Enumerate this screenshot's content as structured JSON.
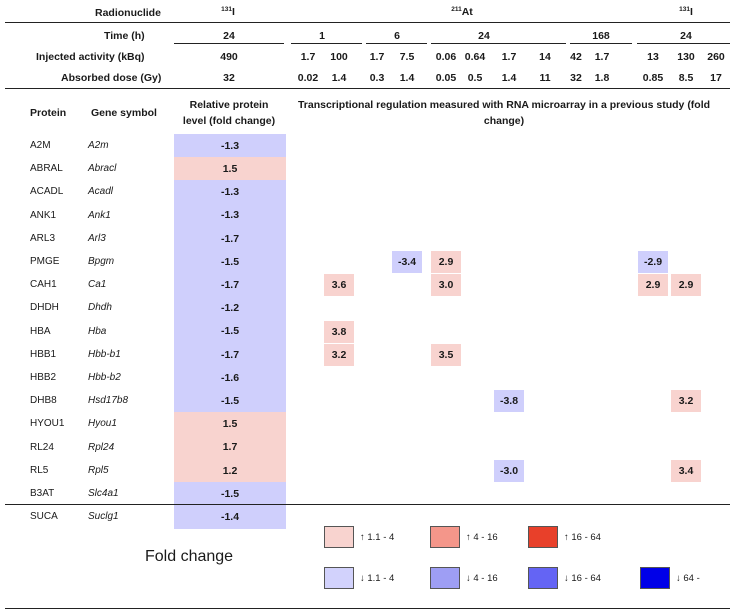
{
  "header": {
    "radionuclide_label": "Radionuclide",
    "time_label": "Time (h)",
    "activity_label": "Injected activity (kBq)",
    "dose_label": "Absorbed dose (Gy)",
    "i131_sup": "131",
    "i131_sym": "I",
    "at211_sup": "211",
    "at211_sym": "At",
    "times": [
      "24",
      "1",
      "6",
      "24",
      "168",
      "24"
    ],
    "activities": [
      "490",
      "1.7",
      "100",
      "1.7",
      "7.5",
      "0.06",
      "0.64",
      "1.7",
      "14",
      "42",
      "1.7",
      "13",
      "130",
      "260"
    ],
    "doses": [
      "32",
      "0.02",
      "1.4",
      "0.3",
      "1.4",
      "0.05",
      "0.5",
      "1.4",
      "11",
      "32",
      "1.8",
      "0.85",
      "8.5",
      "17"
    ]
  },
  "columns": {
    "protein": "Protein",
    "gene": "Gene symbol",
    "relative_line1": "Relative protein",
    "relative_line2": "level (fold change)",
    "transcript_line1": "Transcriptional regulation measured with RNA microarray in a previous study (fold",
    "transcript_line2": "change)"
  },
  "rows": [
    {
      "protein": "A2M",
      "gene": "A2m",
      "fold": "-1.3"
    },
    {
      "protein": "ABRAL",
      "gene": "Abracl",
      "fold": "1.5"
    },
    {
      "protein": "ACADL",
      "gene": "Acadl",
      "fold": "-1.3"
    },
    {
      "protein": "ANK1",
      "gene": "Ank1",
      "fold": "-1.3"
    },
    {
      "protein": "ARL3",
      "gene": "Arl3",
      "fold": "-1.7"
    },
    {
      "protein": "PMGE",
      "gene": "Bpgm",
      "fold": "-1.5"
    },
    {
      "protein": "CAH1",
      "gene": "Ca1",
      "fold": "-1.7"
    },
    {
      "protein": "DHDH",
      "gene": "Dhdh",
      "fold": "-1.2"
    },
    {
      "protein": "HBA",
      "gene": "Hba",
      "fold": "-1.5"
    },
    {
      "protein": "HBB1",
      "gene": "Hbb-b1",
      "fold": "-1.7"
    },
    {
      "protein": "HBB2",
      "gene": "Hbb-b2",
      "fold": "-1.6"
    },
    {
      "protein": "DHB8",
      "gene": "Hsd17b8",
      "fold": "-1.5"
    },
    {
      "protein": "HYOU1",
      "gene": "Hyou1",
      "fold": "1.5"
    },
    {
      "protein": "RL24",
      "gene": "Rpl24",
      "fold": "1.7"
    },
    {
      "protein": "RL5",
      "gene": "Rpl5",
      "fold": "1.2"
    },
    {
      "protein": "B3AT",
      "gene": "Slc4a1",
      "fold": "-1.5"
    },
    {
      "protein": "SUCA",
      "gene": "Suclg1",
      "fold": "-1.4"
    }
  ],
  "transcript_values": [
    {
      "row": 5,
      "col": 4,
      "value": "-3.4",
      "level": "down-1-4"
    },
    {
      "row": 5,
      "col": 5,
      "value": "2.9",
      "level": "up-1-4"
    },
    {
      "row": 5,
      "col": 11,
      "value": "-2.9",
      "level": "down-1-4"
    },
    {
      "row": 6,
      "col": 2,
      "value": "3.6",
      "level": "up-1-4"
    },
    {
      "row": 6,
      "col": 5,
      "value": "3.0",
      "level": "up-1-4"
    },
    {
      "row": 6,
      "col": 11,
      "value": "2.9",
      "level": "up-1-4"
    },
    {
      "row": 6,
      "col": 12,
      "value": "2.9",
      "level": "up-1-4"
    },
    {
      "row": 8,
      "col": 2,
      "value": "3.8",
      "level": "up-1-4"
    },
    {
      "row": 9,
      "col": 2,
      "value": "3.2",
      "level": "up-1-4"
    },
    {
      "row": 9,
      "col": 5,
      "value": "3.5",
      "level": "up-1-4"
    },
    {
      "row": 11,
      "col": 7,
      "value": "-3.8",
      "level": "down-1-4"
    },
    {
      "row": 11,
      "col": 12,
      "value": "3.2",
      "level": "up-1-4"
    },
    {
      "row": 14,
      "col": 7,
      "value": "-3.0",
      "level": "down-1-4"
    },
    {
      "row": 14,
      "col": 12,
      "value": "3.4",
      "level": "up-1-4"
    }
  ],
  "legend": {
    "title": "Fold change",
    "items": [
      {
        "label": "↑ 1.1 - 4",
        "color": "#f8d3cf"
      },
      {
        "label": "↑ 4 - 16",
        "color": "#f4968a"
      },
      {
        "label": "↑ 16 - 64",
        "color": "#e8402a"
      },
      {
        "label": "↓ 1.1 - 4",
        "color": "#d2d2fc"
      },
      {
        "label": "↓ 4 - 16",
        "color": "#9e9ef4"
      },
      {
        "label": "↓ 16 - 64",
        "color": "#6464f4"
      },
      {
        "label": "↓ 64 -",
        "color": "#0000e8"
      }
    ]
  }
}
